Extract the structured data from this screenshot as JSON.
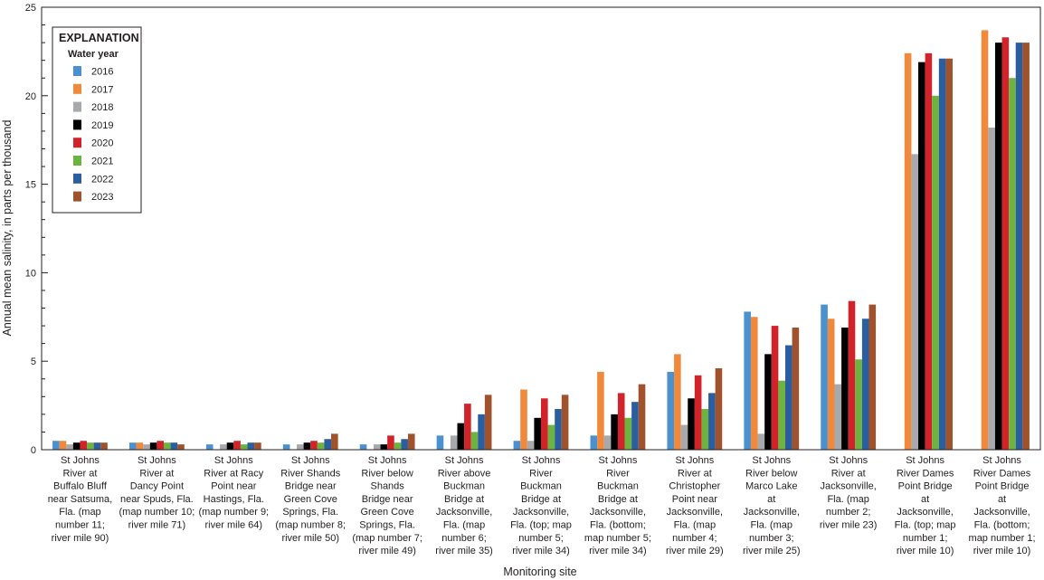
{
  "chart_data": {
    "type": "bar",
    "title": "",
    "xlabel": "Monitoring site",
    "ylabel": "Annual mean salinity, in parts per thousand",
    "ylim": [
      0,
      25
    ],
    "yticks": [
      0,
      5,
      10,
      15,
      20,
      25
    ],
    "grid": false,
    "legend": {
      "title": "EXPLANATION",
      "subtitle": "Water year",
      "placement": "top-left"
    },
    "categories": [
      [
        "St Johns",
        "River at",
        "Buffalo Bluff",
        "near Satsuma,",
        "Fla. (map",
        "number 11;",
        "river mile 90)"
      ],
      [
        "St Johns",
        "River at",
        "Dancy Point",
        "near Spuds, Fla.",
        "(map number 10;",
        "river mile 71)"
      ],
      [
        "St Johns",
        "River at Racy",
        "Point near",
        "Hastings, Fla.",
        "(map number 9;",
        "river mile 64)"
      ],
      [
        "St Johns",
        "River Shands",
        "Bridge near",
        "Green Cove",
        "Springs, Fla.",
        "(map number 8;",
        "river mile 50)"
      ],
      [
        "St Johns",
        "River below",
        "Shands",
        "Bridge near",
        "Green Cove",
        "Springs, Fla.",
        "(map number 7;",
        "river mile 49)"
      ],
      [
        "St Johns",
        "River above",
        "Buckman",
        "Bridge at",
        "Jacksonville,",
        "Fla. (map",
        "number 6;",
        "river mile 35)"
      ],
      [
        "St Johns",
        "River",
        "Buckman",
        "Bridge at",
        "Jacksonville,",
        "Fla. (top; map",
        "number 5;",
        "river mile 34)"
      ],
      [
        "St Johns",
        "River",
        "Buckman",
        "Bridge at",
        "Jacksonville,",
        "Fla. (bottom;",
        "map number 5;",
        "river mile 34)"
      ],
      [
        "St Johns",
        "River at",
        "Christopher",
        "Point near",
        "Jacksonville,",
        "Fla. (map",
        "number 4;",
        "river mile 29)"
      ],
      [
        "St Johns",
        "River below",
        "Marco Lake",
        "at",
        "Jacksonville,",
        "Fla. (map",
        "number 3;",
        "river mile 25)"
      ],
      [
        "St Johns",
        "River at",
        "Jacksonville,",
        "Fla. (map",
        "number 2;",
        "river mile 23)"
      ],
      [
        "St Johns",
        "River Dames",
        "Point Bridge",
        "at",
        "Jacksonville,",
        "Fla. (top; map",
        "number 1;",
        "river mile 10)"
      ],
      [
        "St Johns",
        "River Dames",
        "Point Bridge",
        "at",
        "Jacksonville,",
        "Fla. (bottom;",
        "map number 1;",
        "river mile 10)"
      ]
    ],
    "series": [
      {
        "name": "2016",
        "color": "#4b91cf",
        "values": [
          0.5,
          0.4,
          0.3,
          0.3,
          0.3,
          0.8,
          0.5,
          0.8,
          4.4,
          7.8,
          8.2,
          null,
          null
        ]
      },
      {
        "name": "2017",
        "color": "#f0893c",
        "values": [
          0.5,
          0.4,
          null,
          null,
          null,
          null,
          3.4,
          4.4,
          5.4,
          7.5,
          7.4,
          22.4,
          23.7
        ]
      },
      {
        "name": "2018",
        "color": "#a7a9ac",
        "values": [
          0.3,
          0.3,
          0.3,
          0.3,
          0.3,
          0.8,
          0.5,
          0.8,
          1.4,
          0.9,
          3.7,
          16.7,
          18.2
        ]
      },
      {
        "name": "2019",
        "color": "#000000",
        "values": [
          0.4,
          0.4,
          0.4,
          0.4,
          0.3,
          1.5,
          1.8,
          2.0,
          2.9,
          5.4,
          6.9,
          21.9,
          23.0
        ]
      },
      {
        "name": "2020",
        "color": "#d2232a",
        "values": [
          0.5,
          0.5,
          0.5,
          0.5,
          0.8,
          2.6,
          2.9,
          3.2,
          4.2,
          7.0,
          8.4,
          22.4,
          23.3
        ]
      },
      {
        "name": "2021",
        "color": "#6db33f",
        "values": [
          0.4,
          0.4,
          0.3,
          0.4,
          0.4,
          1.0,
          1.4,
          1.8,
          2.3,
          3.9,
          5.1,
          20.0,
          21.0
        ]
      },
      {
        "name": "2022",
        "color": "#2a5e9e",
        "values": [
          0.4,
          0.4,
          0.4,
          0.6,
          0.6,
          2.0,
          2.3,
          2.7,
          3.2,
          5.9,
          7.4,
          22.1,
          23.0
        ]
      },
      {
        "name": "2023",
        "color": "#a0522d",
        "values": [
          0.4,
          0.3,
          0.4,
          0.9,
          0.9,
          3.1,
          3.1,
          3.7,
          4.6,
          6.9,
          8.2,
          22.1,
          23.0
        ]
      }
    ]
  }
}
